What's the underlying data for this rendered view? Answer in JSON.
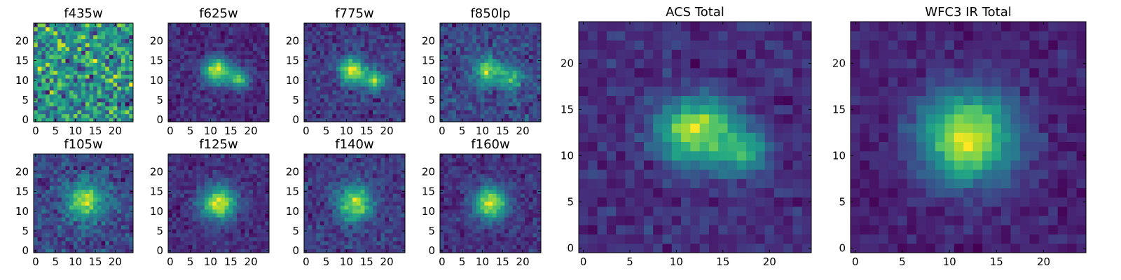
{
  "chart_data": [
    {
      "type": "heatmap",
      "title": "f435w",
      "xticks": [
        0,
        5,
        10,
        15,
        20
      ],
      "yticks": [
        0,
        5,
        10,
        15,
        20
      ],
      "xlim": [
        -0.5,
        24.5
      ],
      "ylim": [
        -0.5,
        24.5
      ],
      "grid_size": [
        25,
        25
      ],
      "colormap": "viridis",
      "peaks": [],
      "noise_level": 0.82,
      "seed": 11
    },
    {
      "type": "heatmap",
      "title": "f625w",
      "xticks": [
        0,
        5,
        10,
        15,
        20
      ],
      "yticks": [
        0,
        5,
        10,
        15,
        20
      ],
      "xlim": [
        -0.5,
        24.5
      ],
      "ylim": [
        -0.5,
        24.5
      ],
      "grid_size": [
        25,
        25
      ],
      "colormap": "viridis",
      "peaks": [
        {
          "x": 11.5,
          "y": 12.5,
          "sigma": 2.3,
          "amp": 0.75
        },
        {
          "x": 17,
          "y": 10.5,
          "sigma": 1.8,
          "amp": 0.55
        }
      ],
      "noise_level": 0.32,
      "seed": 23
    },
    {
      "type": "heatmap",
      "title": "f775w",
      "xticks": [
        0,
        5,
        10,
        15,
        20
      ],
      "yticks": [
        0,
        5,
        10,
        15,
        20
      ],
      "xlim": [
        -0.5,
        24.5
      ],
      "ylim": [
        -0.5,
        24.5
      ],
      "grid_size": [
        25,
        25
      ],
      "colormap": "viridis",
      "peaks": [
        {
          "x": 11.5,
          "y": 12.5,
          "sigma": 2.2,
          "amp": 0.7
        },
        {
          "x": 17,
          "y": 10,
          "sigma": 1.8,
          "amp": 0.55
        }
      ],
      "noise_level": 0.36,
      "seed": 37
    },
    {
      "type": "heatmap",
      "title": "f850lp",
      "xticks": [
        0,
        5,
        10,
        15,
        20
      ],
      "yticks": [
        0,
        5,
        10,
        15,
        20
      ],
      "xlim": [
        -0.5,
        24.5
      ],
      "ylim": [
        -0.5,
        24.5
      ],
      "grid_size": [
        25,
        25
      ],
      "colormap": "viridis",
      "peaks": [
        {
          "x": 11.5,
          "y": 12.5,
          "sigma": 2.4,
          "amp": 0.6
        },
        {
          "x": 17,
          "y": 10.5,
          "sigma": 1.9,
          "amp": 0.45
        }
      ],
      "noise_level": 0.5,
      "seed": 41
    },
    {
      "type": "heatmap",
      "title": "f105w",
      "xticks": [
        0,
        5,
        10,
        15,
        20
      ],
      "yticks": [
        0,
        5,
        10,
        15,
        20
      ],
      "xlim": [
        -0.5,
        24.5
      ],
      "ylim": [
        -0.5,
        24.5
      ],
      "grid_size": [
        25,
        25
      ],
      "colormap": "viridis",
      "peaks": [
        {
          "x": 12.5,
          "y": 12.5,
          "sigma": 3.2,
          "amp": 0.6
        }
      ],
      "noise_level": 0.45,
      "seed": 53
    },
    {
      "type": "heatmap",
      "title": "f125w",
      "xticks": [
        0,
        5,
        10,
        15,
        20
      ],
      "yticks": [
        0,
        5,
        10,
        15,
        20
      ],
      "xlim": [
        -0.5,
        24.5
      ],
      "ylim": [
        -0.5,
        24.5
      ],
      "grid_size": [
        25,
        25
      ],
      "colormap": "viridis",
      "peaks": [
        {
          "x": 12,
          "y": 12,
          "sigma": 3.0,
          "amp": 0.8
        }
      ],
      "noise_level": 0.32,
      "seed": 67
    },
    {
      "type": "heatmap",
      "title": "f140w",
      "xticks": [
        0,
        5,
        10,
        15,
        20
      ],
      "yticks": [
        0,
        5,
        10,
        15,
        20
      ],
      "xlim": [
        -0.5,
        24.5
      ],
      "ylim": [
        -0.5,
        24.5
      ],
      "grid_size": [
        25,
        25
      ],
      "colormap": "viridis",
      "peaks": [
        {
          "x": 12,
          "y": 12,
          "sigma": 3.1,
          "amp": 0.7
        }
      ],
      "noise_level": 0.4,
      "seed": 71
    },
    {
      "type": "heatmap",
      "title": "f160w",
      "xticks": [
        0,
        5,
        10,
        15,
        20
      ],
      "yticks": [
        0,
        5,
        10,
        15,
        20
      ],
      "xlim": [
        -0.5,
        24.5
      ],
      "ylim": [
        -0.5,
        24.5
      ],
      "grid_size": [
        25,
        25
      ],
      "colormap": "viridis",
      "peaks": [
        {
          "x": 12,
          "y": 12,
          "sigma": 2.9,
          "amp": 0.75
        }
      ],
      "noise_level": 0.32,
      "seed": 83
    },
    {
      "type": "heatmap",
      "title": "ACS Total",
      "xticks": [
        0,
        5,
        10,
        15,
        20
      ],
      "yticks": [
        0,
        5,
        10,
        15,
        20
      ],
      "xlim": [
        -0.5,
        24.5
      ],
      "ylim": [
        -0.5,
        24.5
      ],
      "grid_size": [
        25,
        25
      ],
      "colormap": "viridis",
      "peaks": [
        {
          "x": 11.5,
          "y": 12.5,
          "sigma": 2.5,
          "amp": 0.72
        },
        {
          "x": 17,
          "y": 10.5,
          "sigma": 1.9,
          "amp": 0.5
        },
        {
          "x": 14.5,
          "y": 14,
          "sigma": 1.8,
          "amp": 0.2
        }
      ],
      "noise_level": 0.3,
      "seed": 97
    },
    {
      "type": "heatmap",
      "title": "WFC3 IR Total",
      "xticks": [
        0,
        5,
        10,
        15,
        20
      ],
      "yticks": [
        0,
        5,
        10,
        15,
        20
      ],
      "xlim": [
        -0.5,
        24.5
      ],
      "ylim": [
        -0.5,
        24.5
      ],
      "grid_size": [
        25,
        25
      ],
      "colormap": "viridis",
      "peaks": [
        {
          "x": 12,
          "y": 12,
          "sigma": 3.4,
          "amp": 0.78
        }
      ],
      "noise_level": 0.24,
      "seed": 101
    }
  ]
}
